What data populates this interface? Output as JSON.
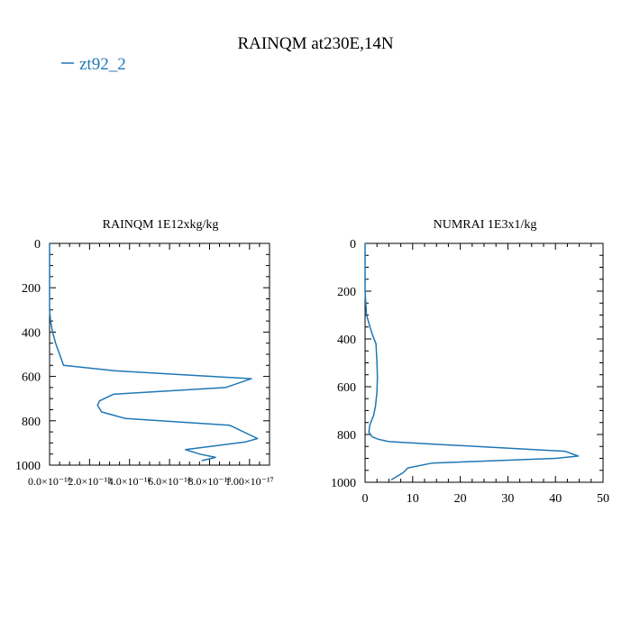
{
  "title": "RAINQM at230E,14N",
  "legend": {
    "label": "zt92_2",
    "color": "#1f77b4"
  },
  "chart_data": [
    {
      "type": "line",
      "title": "RAINQM  1E12xkg/kg",
      "xlabel": "",
      "ylabel": "",
      "xlim": [
        0,
        1.1e-17
      ],
      "ylim": [
        1000,
        0
      ],
      "y_inverted": true,
      "grid": false,
      "xticks": [
        "0.0×10⁻¹⁸",
        "2.0×10⁻¹⁸",
        "4.0×10⁻¹⁸",
        "6.0×10⁻¹⁸",
        "8.0×10⁻¹⁸",
        "1.00×10⁻¹⁷"
      ],
      "yticks": [
        "0",
        "200",
        "400",
        "600",
        "800",
        "1000"
      ],
      "series": [
        {
          "name": "zt92_2",
          "color": "#1f77b4",
          "x": [
            0,
            0,
            0,
            5e-20,
            1.5e-19,
            3e-19,
            5e-19,
            7e-19,
            3.3e-18,
            1.01e-17,
            8.8e-18,
            3.2e-18,
            2.5e-18,
            2.4e-18,
            2.6e-18,
            3.8e-18,
            9e-18,
            1.04e-17,
            9.8e-18,
            6.8e-18,
            7.5e-18,
            8.3e-18,
            7.6e-18
          ],
          "y": [
            0,
            200,
            300,
            350,
            400,
            450,
            500,
            550,
            575,
            610,
            650,
            680,
            710,
            730,
            760,
            790,
            820,
            880,
            895,
            930,
            950,
            965,
            980
          ]
        }
      ]
    },
    {
      "type": "line",
      "title": "NUMRAI  1E3x1/kg",
      "xlabel": "",
      "ylabel": "",
      "xlim": [
        0,
        50
      ],
      "ylim": [
        1000,
        0
      ],
      "y_inverted": true,
      "grid": false,
      "xticks": [
        "0",
        "10",
        "20",
        "30",
        "40",
        "50"
      ],
      "yticks": [
        "0",
        "200",
        "400",
        "600",
        "800",
        "1000"
      ],
      "series": [
        {
          "name": "zt92_2",
          "color": "#1f77b4",
          "x": [
            0,
            0,
            0.3,
            1.5,
            2.3,
            2.5,
            2.6,
            2.5,
            2.2,
            1.8,
            1.0,
            0.8,
            1.5,
            2.8,
            5.0,
            14.0,
            42.0,
            44.8,
            40.0,
            14.0,
            9.0,
            8.0,
            5.5
          ],
          "y": [
            0,
            200,
            300,
            380,
            420,
            500,
            560,
            620,
            680,
            720,
            760,
            790,
            810,
            820,
            830,
            840,
            870,
            890,
            900,
            920,
            940,
            960,
            990
          ]
        }
      ]
    }
  ]
}
